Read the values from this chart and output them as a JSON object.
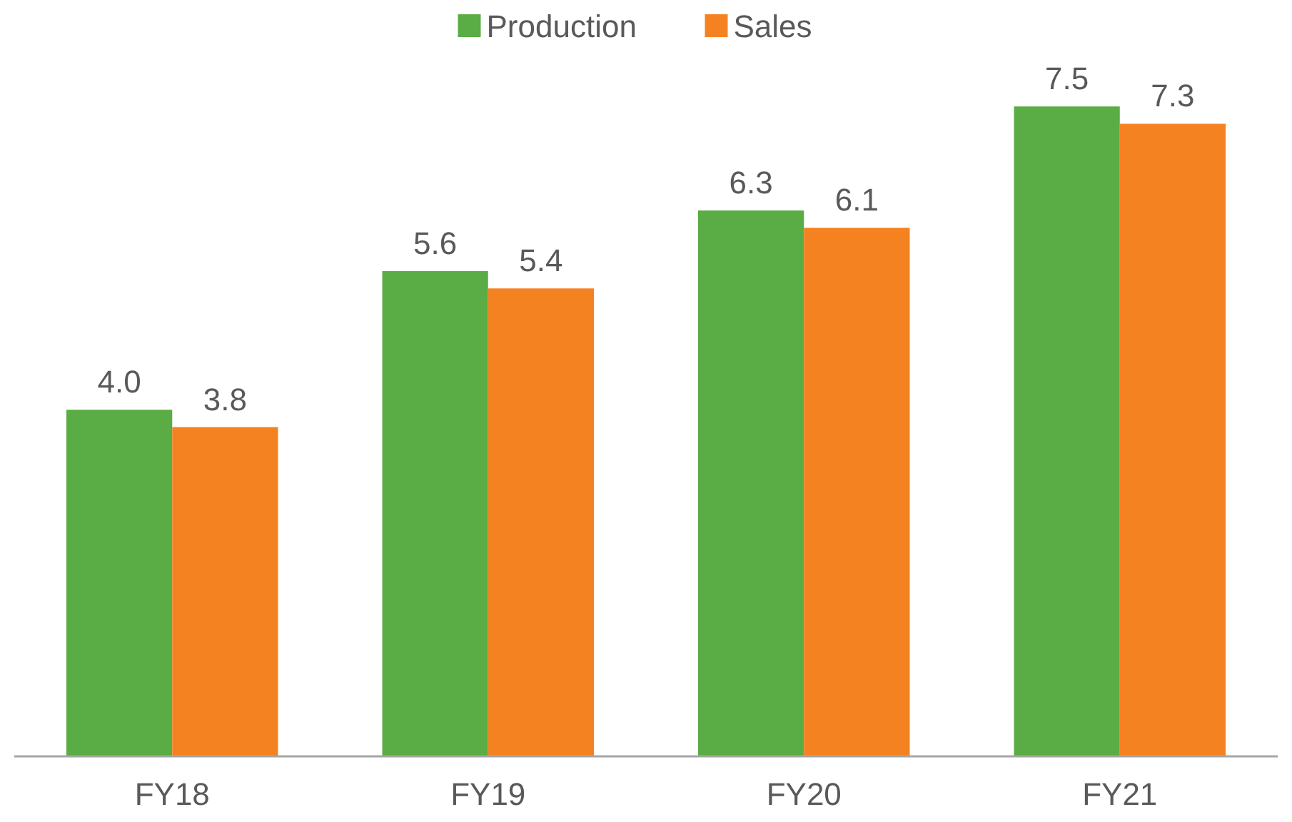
{
  "chart_data": {
    "type": "bar",
    "categories": [
      "FY18",
      "FY19",
      "FY20",
      "FY21"
    ],
    "series": [
      {
        "name": "Production",
        "color": "#5aac44",
        "values": [
          4.0,
          5.6,
          6.3,
          7.5
        ],
        "value_labels": [
          "4.0",
          "5.6",
          "6.3",
          "7.5"
        ]
      },
      {
        "name": "Sales",
        "color": "#f58220",
        "values": [
          3.8,
          5.4,
          6.1,
          7.3
        ],
        "value_labels": [
          "3.8",
          "5.4",
          "6.1",
          "7.3"
        ]
      }
    ],
    "legend": "top"
  }
}
